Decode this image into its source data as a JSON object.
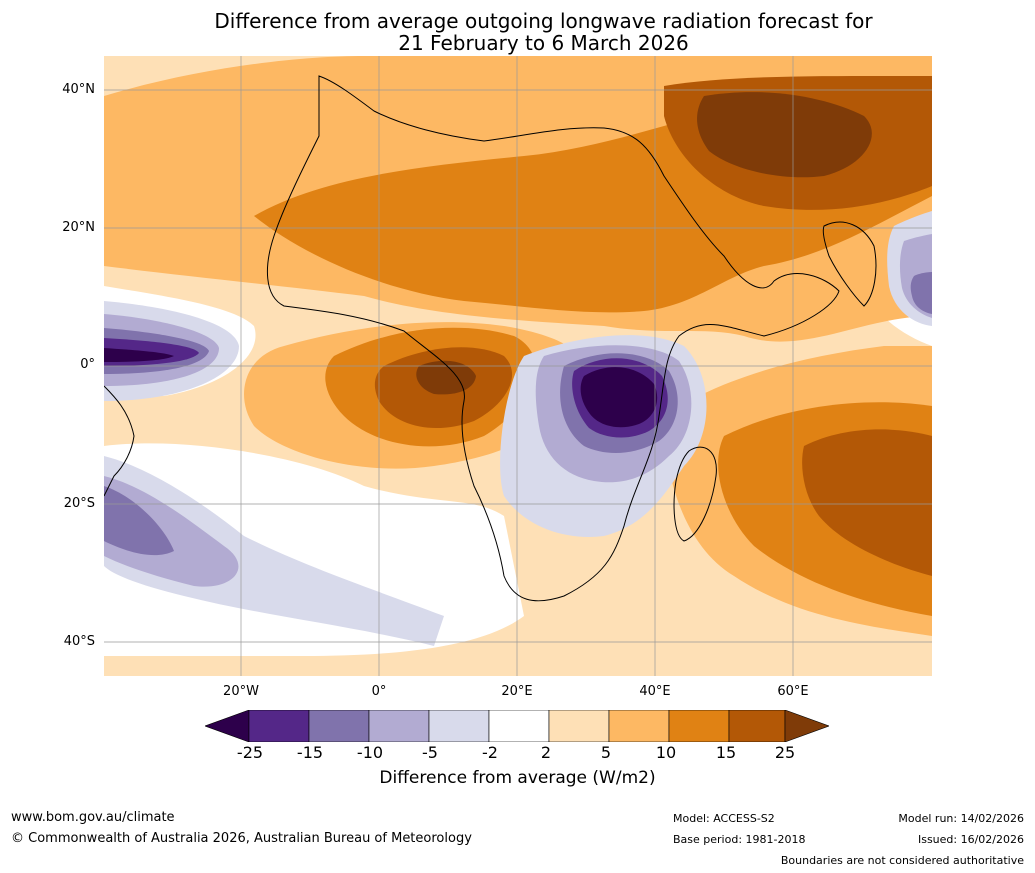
{
  "title_line1": "Difference from average outgoing longwave radiation forecast for",
  "title_line2": "21 February to 6 March 2026",
  "map": {
    "lat_labels": [
      "40°N",
      "20°N",
      "0°",
      "20°S",
      "40°S"
    ],
    "lon_labels": [
      "20°W",
      "0°",
      "20°E",
      "40°E",
      "60°E"
    ]
  },
  "colorbar": {
    "ticks": [
      "-25",
      "-15",
      "-10",
      "-5",
      "-2",
      "2",
      "5",
      "10",
      "15",
      "25"
    ],
    "colors": [
      "#2d004b",
      "#542788",
      "#8073ac",
      "#b2abd2",
      "#d8daeb",
      "#ffffff",
      "#fee0b6",
      "#fdb863",
      "#e08214",
      "#b35806",
      "#7f3b08"
    ],
    "label": "Difference from average (W/m2)"
  },
  "footer": {
    "website": "www.bom.gov.au/climate",
    "copyright": "© Commonwealth of Australia 2026, Australian Bureau of Meteorology",
    "model": "Model: ACCESS-S2",
    "base_period": "Base period: 1981-2018",
    "model_run": "Model run: 14/02/2026",
    "issued": "Issued: 16/02/2026",
    "disclaimer": "Boundaries are not considered authoritative"
  }
}
